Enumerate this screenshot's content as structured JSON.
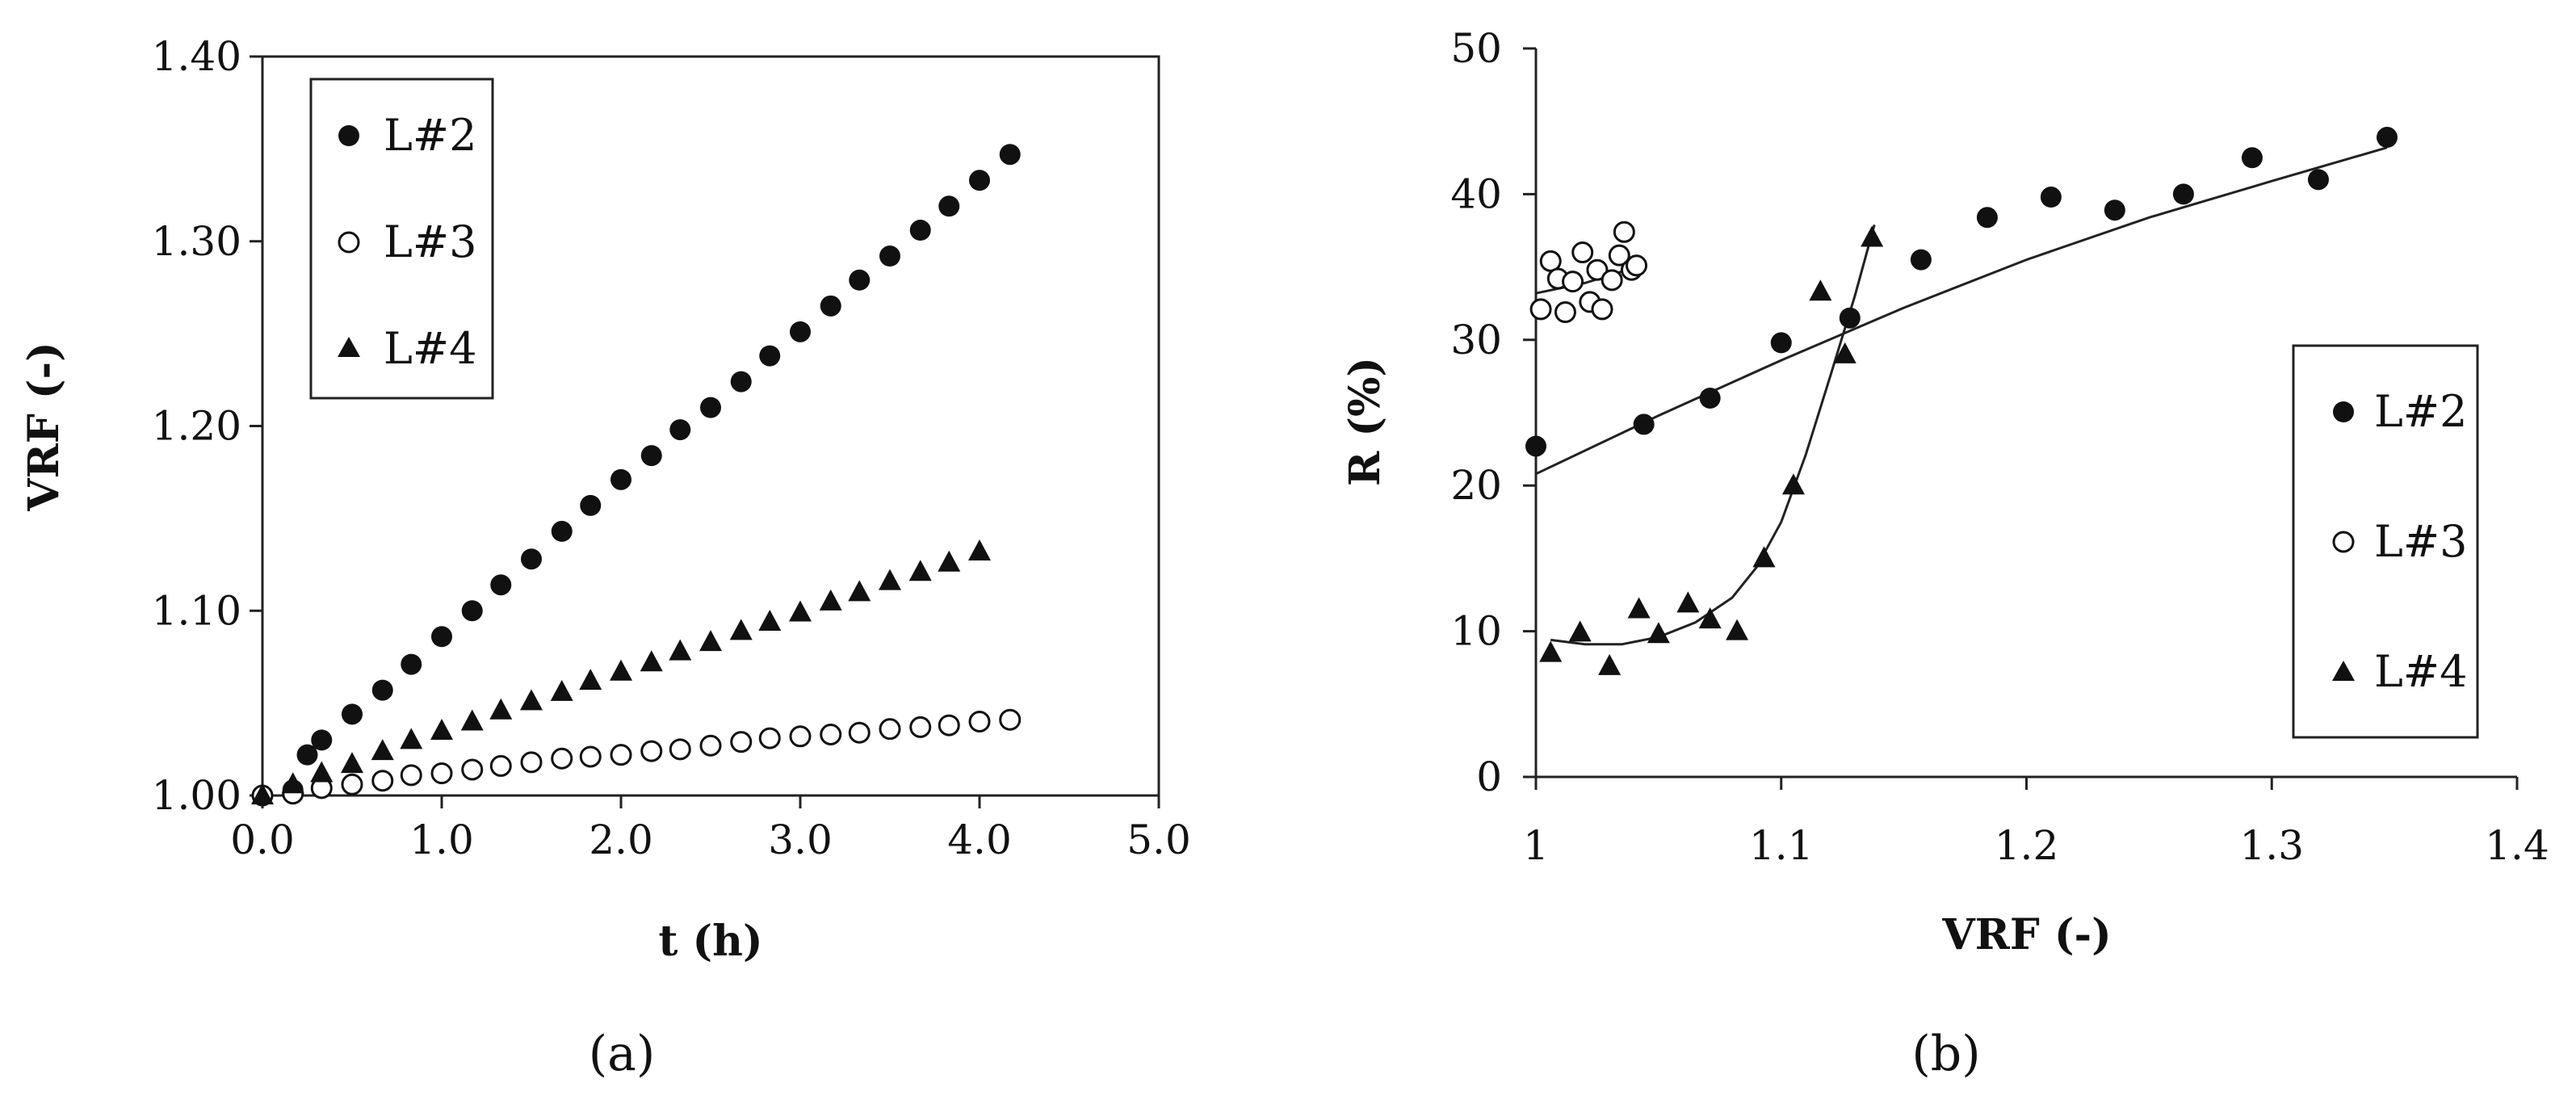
{
  "chart_data": [
    {
      "type": "scatter",
      "caption": "(a)",
      "xlabel": "t (h)",
      "ylabel": "VRF (-)",
      "xlim": [
        0,
        5
      ],
      "ylim": [
        1.0,
        1.4
      ],
      "xticks": [
        "0.0",
        "1.0",
        "2.0",
        "3.0",
        "4.0",
        "5.0"
      ],
      "yticks": [
        "1.00",
        "1.10",
        "1.20",
        "1.30",
        "1.40"
      ],
      "legend_position": "top-left",
      "series": [
        {
          "name": "L#2",
          "marker": "filled-circle",
          "points": [
            [
              0,
              1.0
            ],
            [
              0.17,
              1.003
            ],
            [
              0.25,
              1.022
            ],
            [
              0.33,
              1.03
            ],
            [
              0.5,
              1.044
            ],
            [
              0.67,
              1.057
            ],
            [
              0.83,
              1.071
            ],
            [
              1.0,
              1.086
            ],
            [
              1.17,
              1.1
            ],
            [
              1.33,
              1.114
            ],
            [
              1.5,
              1.128
            ],
            [
              1.67,
              1.143
            ],
            [
              1.83,
              1.157
            ],
            [
              2.0,
              1.171
            ],
            [
              2.17,
              1.184
            ],
            [
              2.33,
              1.198
            ],
            [
              2.5,
              1.21
            ],
            [
              2.67,
              1.224
            ],
            [
              2.83,
              1.238
            ],
            [
              3.0,
              1.251
            ],
            [
              3.17,
              1.265
            ],
            [
              3.33,
              1.279
            ],
            [
              3.5,
              1.292
            ],
            [
              3.67,
              1.306
            ],
            [
              3.83,
              1.319
            ],
            [
              4.0,
              1.333
            ],
            [
              4.17,
              1.347
            ]
          ]
        },
        {
          "name": "L#3",
          "marker": "open-circle",
          "points": [
            [
              0,
              1.0
            ],
            [
              0.17,
              1.001
            ],
            [
              0.33,
              1.004
            ],
            [
              0.5,
              1.006
            ],
            [
              0.67,
              1.008
            ],
            [
              0.83,
              1.011
            ],
            [
              1.0,
              1.012
            ],
            [
              1.17,
              1.014
            ],
            [
              1.33,
              1.016
            ],
            [
              1.5,
              1.018
            ],
            [
              1.67,
              1.02
            ],
            [
              1.83,
              1.021
            ],
            [
              2.0,
              1.022
            ],
            [
              2.17,
              1.024
            ],
            [
              2.33,
              1.025
            ],
            [
              2.5,
              1.027
            ],
            [
              2.67,
              1.029
            ],
            [
              2.83,
              1.031
            ],
            [
              3.0,
              1.032
            ],
            [
              3.17,
              1.033
            ],
            [
              3.33,
              1.034
            ],
            [
              3.5,
              1.036
            ],
            [
              3.67,
              1.037
            ],
            [
              3.83,
              1.038
            ],
            [
              4.0,
              1.04
            ],
            [
              4.17,
              1.041
            ]
          ]
        },
        {
          "name": "L#4",
          "marker": "filled-triangle",
          "points": [
            [
              0,
              1.0
            ],
            [
              0.17,
              1.006
            ],
            [
              0.33,
              1.012
            ],
            [
              0.5,
              1.017
            ],
            [
              0.67,
              1.024
            ],
            [
              0.83,
              1.03
            ],
            [
              1.0,
              1.035
            ],
            [
              1.17,
              1.04
            ],
            [
              1.33,
              1.046
            ],
            [
              1.5,
              1.051
            ],
            [
              1.67,
              1.056
            ],
            [
              1.83,
              1.062
            ],
            [
              2.0,
              1.067
            ],
            [
              2.17,
              1.072
            ],
            [
              2.33,
              1.078
            ],
            [
              2.5,
              1.083
            ],
            [
              2.67,
              1.089
            ],
            [
              2.83,
              1.094
            ],
            [
              3.0,
              1.099
            ],
            [
              3.17,
              1.105
            ],
            [
              3.33,
              1.11
            ],
            [
              3.5,
              1.116
            ],
            [
              3.67,
              1.121
            ],
            [
              3.83,
              1.126
            ],
            [
              4.0,
              1.132
            ]
          ]
        }
      ]
    },
    {
      "type": "scatter",
      "caption": "(b)",
      "xlabel": "VRF (-)",
      "ylabel": "R (%)",
      "xlim": [
        1.0,
        1.4
      ],
      "ylim": [
        0,
        50
      ],
      "xticks": [
        "1",
        "1.1",
        "1.2",
        "1.3",
        "1.4"
      ],
      "yticks": [
        "0",
        "10",
        "20",
        "30",
        "40",
        "50"
      ],
      "legend_position": "bottom-right",
      "series": [
        {
          "name": "L#2",
          "marker": "filled-circle",
          "points": [
            [
              1.0,
              22.7
            ],
            [
              1.044,
              24.2
            ],
            [
              1.071,
              26.0
            ],
            [
              1.1,
              29.8
            ],
            [
              1.128,
              31.5
            ],
            [
              1.157,
              35.5
            ],
            [
              1.184,
              38.4
            ],
            [
              1.21,
              39.8
            ],
            [
              1.236,
              38.9
            ],
            [
              1.264,
              40.0
            ],
            [
              1.292,
              42.5
            ],
            [
              1.319,
              41.0
            ],
            [
              1.347,
              43.9
            ]
          ],
          "trend": [
            [
              1.0,
              20.8
            ],
            [
              1.05,
              24.8
            ],
            [
              1.1,
              28.6
            ],
            [
              1.15,
              32.2
            ],
            [
              1.2,
              35.5
            ],
            [
              1.25,
              38.4
            ],
            [
              1.3,
              40.9
            ],
            [
              1.347,
              43.2
            ]
          ]
        },
        {
          "name": "L#3",
          "marker": "open-circle",
          "points": [
            [
              1.002,
              32.1
            ],
            [
              1.006,
              35.4
            ],
            [
              1.009,
              34.2
            ],
            [
              1.012,
              31.9
            ],
            [
              1.015,
              34.0
            ],
            [
              1.019,
              36.0
            ],
            [
              1.022,
              32.6
            ],
            [
              1.025,
              34.8
            ],
            [
              1.027,
              32.1
            ],
            [
              1.031,
              34.1
            ],
            [
              1.034,
              35.8
            ],
            [
              1.036,
              37.4
            ],
            [
              1.039,
              34.8
            ],
            [
              1.041,
              35.1
            ]
          ],
          "trend": [
            [
              1.0,
              33.2
            ],
            [
              1.02,
              33.9
            ],
            [
              1.041,
              35.0
            ]
          ]
        },
        {
          "name": "L#4",
          "marker": "filled-triangle",
          "points": [
            [
              1.006,
              8.5
            ],
            [
              1.018,
              9.9
            ],
            [
              1.03,
              7.6
            ],
            [
              1.042,
              11.5
            ],
            [
              1.05,
              9.8
            ],
            [
              1.062,
              11.9
            ],
            [
              1.071,
              10.8
            ],
            [
              1.082,
              10.0
            ],
            [
              1.093,
              15.0
            ],
            [
              1.105,
              20.0
            ],
            [
              1.116,
              33.3
            ],
            [
              1.126,
              29.0
            ],
            [
              1.137,
              37.0
            ]
          ],
          "trend": [
            [
              1.006,
              9.4
            ],
            [
              1.02,
              9.1
            ],
            [
              1.035,
              9.1
            ],
            [
              1.05,
              9.6
            ],
            [
              1.065,
              10.6
            ],
            [
              1.08,
              12.3
            ],
            [
              1.09,
              14.4
            ],
            [
              1.1,
              17.5
            ],
            [
              1.11,
              22.1
            ],
            [
              1.12,
              27.5
            ],
            [
              1.13,
              33.0
            ],
            [
              1.138,
              37.9
            ]
          ]
        }
      ]
    }
  ]
}
